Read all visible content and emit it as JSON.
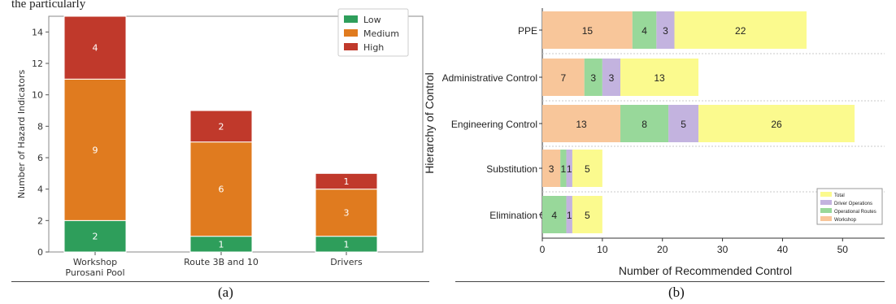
{
  "page": {
    "top_crop_text": "the particularly",
    "panel_labels": [
      "(a)",
      "(b)"
    ]
  },
  "chart_data": [
    {
      "type": "bar",
      "stacked": true,
      "orientation": "vertical",
      "categories": [
        "Workshop\nPurosani Pool",
        "Route 3B and 10",
        "Drivers"
      ],
      "series": [
        {
          "name": "Low",
          "color": "#2e9e5b",
          "values": [
            2,
            1,
            1
          ]
        },
        {
          "name": "Medium",
          "color": "#e07b1f",
          "values": [
            9,
            6,
            3
          ]
        },
        {
          "name": "High",
          "color": "#c0392b",
          "values": [
            4,
            2,
            1
          ]
        }
      ],
      "ylabel": "Number of Hazard Indicators",
      "xlabel": "",
      "ylim": [
        0,
        15
      ],
      "yticks": [
        0,
        2,
        4,
        6,
        8,
        10,
        12,
        14
      ],
      "legend": "top-right",
      "grid": false
    },
    {
      "type": "bar",
      "stacked": true,
      "orientation": "horizontal",
      "categories": [
        "PPE",
        "Administrative Control",
        "Engineering Control",
        "Substitution",
        "Elimination"
      ],
      "series": [
        {
          "name": "Workshop",
          "color": "#f8c69a",
          "values": [
            15,
            7,
            13,
            3,
            0
          ]
        },
        {
          "name": "Operational Routes",
          "color": "#98d89a",
          "values": [
            4,
            3,
            8,
            1,
            4
          ]
        },
        {
          "name": "Driver Operations",
          "color": "#c3b3df",
          "values": [
            3,
            3,
            5,
            1,
            1
          ]
        },
        {
          "name": "Total",
          "color": "#fbfa8e",
          "values": [
            22,
            13,
            26,
            5,
            5
          ]
        }
      ],
      "xlabel": "Number of Recommended Control",
      "ylabel": "Hierarchy of Control",
      "xlim": [
        0,
        57
      ],
      "xticks": [
        0,
        10,
        20,
        30,
        40,
        50
      ],
      "legend": "bottom-right",
      "grid": "horizontal dashed"
    }
  ]
}
